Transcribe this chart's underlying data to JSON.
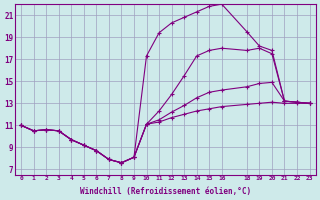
{
  "xlabel": "Windchill (Refroidissement éolien,°C)",
  "bg_color": "#ceeaea",
  "line_color": "#800080",
  "grid_color": "#a0a0c0",
  "xlim": [
    -0.5,
    23.5
  ],
  "ylim": [
    6.5,
    22.0
  ],
  "xticks": [
    0,
    1,
    2,
    3,
    4,
    5,
    6,
    7,
    8,
    9,
    10,
    11,
    12,
    13,
    14,
    15,
    16,
    18,
    19,
    20,
    21,
    22,
    23
  ],
  "yticks": [
    7,
    9,
    11,
    13,
    15,
    17,
    19,
    21
  ],
  "lines": [
    {
      "x": [
        0,
        1,
        2,
        3,
        4,
        5,
        6,
        7,
        8,
        9,
        10,
        11,
        12,
        13,
        14,
        15,
        16,
        18,
        19,
        20,
        21,
        22,
        23
      ],
      "y": [
        11.0,
        10.5,
        10.6,
        10.5,
        9.7,
        9.2,
        8.7,
        7.9,
        7.6,
        8.1,
        11.1,
        11.3,
        11.7,
        12.0,
        12.3,
        12.5,
        12.7,
        12.9,
        13.0,
        13.1,
        13.0,
        13.0,
        13.0
      ]
    },
    {
      "x": [
        0,
        1,
        2,
        3,
        4,
        5,
        6,
        7,
        8,
        9,
        10,
        11,
        12,
        13,
        14,
        15,
        16,
        18,
        19,
        20,
        21,
        22,
        23
      ],
      "y": [
        11.0,
        10.5,
        10.6,
        10.5,
        9.7,
        9.2,
        8.7,
        7.9,
        7.6,
        8.1,
        11.1,
        11.5,
        12.2,
        12.8,
        13.5,
        14.0,
        14.2,
        14.5,
        14.8,
        14.9,
        13.2,
        13.1,
        13.0
      ]
    },
    {
      "x": [
        0,
        1,
        2,
        3,
        4,
        5,
        6,
        7,
        8,
        9,
        10,
        11,
        12,
        13,
        14,
        15,
        16,
        18,
        19,
        20,
        21,
        22,
        23
      ],
      "y": [
        11.0,
        10.5,
        10.6,
        10.5,
        9.7,
        9.2,
        8.7,
        7.9,
        7.6,
        8.1,
        11.1,
        12.3,
        13.8,
        15.5,
        17.3,
        17.8,
        18.0,
        17.8,
        18.0,
        17.5,
        13.2,
        13.1,
        13.0
      ]
    },
    {
      "x": [
        0,
        1,
        2,
        3,
        4,
        5,
        6,
        7,
        8,
        9,
        10,
        11,
        12,
        13,
        14,
        15,
        16,
        18,
        19,
        20,
        21,
        22,
        23
      ],
      "y": [
        11.0,
        10.5,
        10.6,
        10.5,
        9.7,
        9.2,
        8.7,
        7.9,
        7.6,
        8.1,
        17.3,
        19.4,
        20.3,
        20.8,
        21.3,
        21.8,
        22.0,
        19.5,
        18.2,
        17.8,
        13.2,
        13.1,
        13.0
      ]
    }
  ]
}
